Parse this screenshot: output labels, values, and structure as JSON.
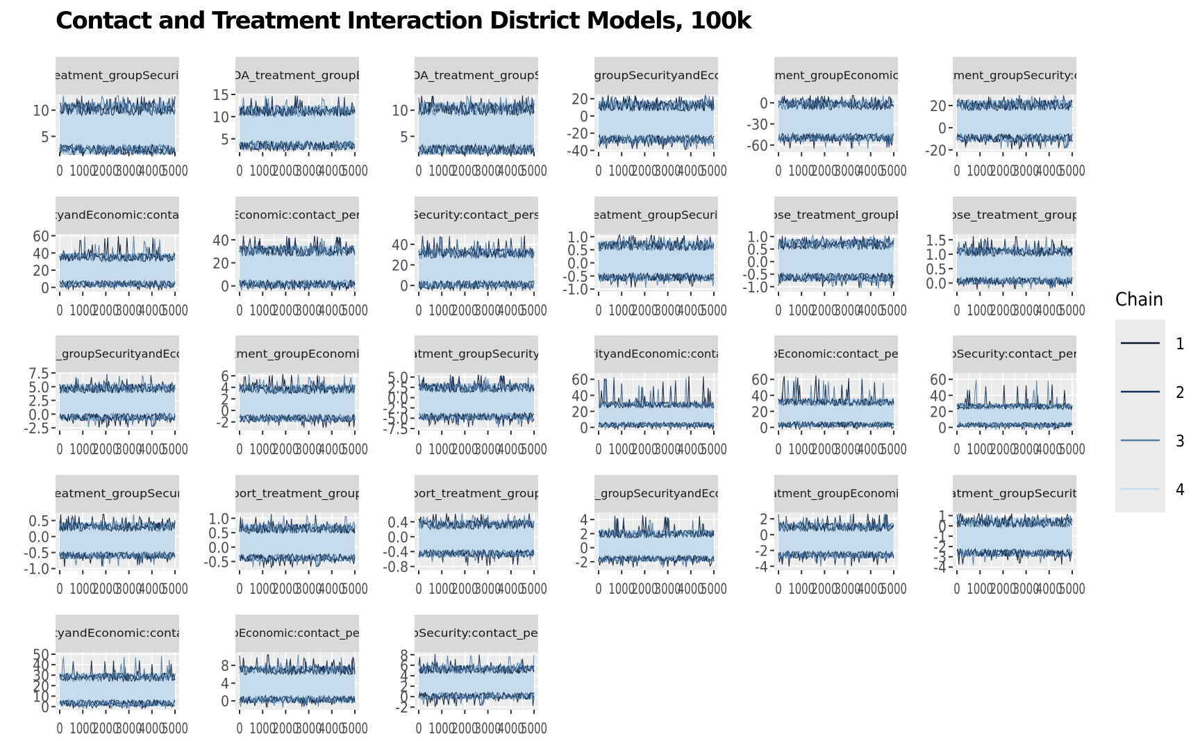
{
  "chart_data": {
    "type": "line",
    "title": "Contact and Treatment Interaction District Models, 100k",
    "xlabel": "",
    "ylabel": "",
    "x_ticks": [
      "0",
      "1000",
      "2000",
      "3000",
      "4000",
      "5000"
    ],
    "xlim": [
      0,
      5000
    ],
    "grid": true,
    "legend": {
      "title": "Chain",
      "placement": "right",
      "entries": [
        "1",
        "2",
        "3",
        "4"
      ],
      "colors": [
        "#08162e",
        "#0e2f5c",
        "#4f7da8",
        "#c6dbec"
      ]
    },
    "facets": [
      {
        "strip": "treatment_groupSecurity",
        "ylim": [
          2,
          13
        ],
        "yticks": [
          "5",
          "10"
        ],
        "band": [
          1.5,
          11.5
        ]
      },
      {
        "strip": "KDA_treatment_groupEc",
        "ylim": [
          2,
          15
        ],
        "yticks": [
          "5",
          "10",
          "15"
        ],
        "band": [
          2.5,
          12.5
        ]
      },
      {
        "strip": "KDA_treatment_groupSe",
        "ylim": [
          2,
          13
        ],
        "yticks": [
          "5",
          "10"
        ],
        "band": [
          1.5,
          11.5
        ]
      },
      {
        "strip": "t_groupSecurityandEcon",
        "ylim": [
          -42,
          25
        ],
        "yticks": [
          "20",
          "0",
          "-20",
          "-40"
        ],
        "band": [
          -32,
          18
        ]
      },
      {
        "strip": "atment_groupEconomic:c",
        "ylim": [
          -70,
          12
        ],
        "yticks": [
          "0",
          "-30",
          "-60"
        ],
        "band": [
          -55,
          5
        ]
      },
      {
        "strip": "atment_groupSecurity:co",
        "ylim": [
          -22,
          30
        ],
        "yticks": [
          "20",
          "0",
          "-20"
        ],
        "band": [
          -13,
          25
        ]
      },
      {
        "strip": "rityandEconomic:contact",
        "ylim": [
          -5,
          62
        ],
        "yticks": [
          "60",
          "40",
          "20",
          "0"
        ],
        "band": [
          0,
          40
        ]
      },
      {
        "strip": "pEconomic:contact_persl",
        "ylim": [
          -5,
          45
        ],
        "yticks": [
          "40",
          "20",
          "0"
        ],
        "band": [
          -2,
          35
        ]
      },
      {
        "strip": "pSecurity:contact_persD",
        "ylim": [
          -6,
          50
        ],
        "yticks": [
          "40",
          "20",
          "0"
        ],
        "band": [
          -3,
          36
        ]
      },
      {
        "strip": "treatment_groupSecurity",
        "ylim": [
          -1.1,
          1.1
        ],
        "yticks": [
          "1.0",
          "0.5",
          "0.0",
          "-0.5",
          "-1.0"
        ],
        "band": [
          -0.7,
          0.85
        ]
      },
      {
        "strip": "pose_treatment_groupEc",
        "ylim": [
          -1.2,
          1.1
        ],
        "yticks": [
          "1.0",
          "0.5",
          "0.0",
          "-0.5",
          "-1.0"
        ],
        "band": [
          -0.8,
          0.9
        ]
      },
      {
        "strip": "pose_treatment_groupS",
        "ylim": [
          -0.3,
          1.7
        ],
        "yticks": [
          "1.5",
          "1.0",
          "0.5",
          "0.0"
        ],
        "band": [
          -0.05,
          1.25
        ]
      },
      {
        "strip": "nt_groupSecurityandEcon",
        "ylim": [
          -3,
          7.5
        ],
        "yticks": [
          "7.5",
          "5.0",
          "2.5",
          "0.0",
          "-2.5"
        ],
        "band": [
          -1.2,
          5.5
        ]
      },
      {
        "strip": "atment_groupEconomic:",
        "ylim": [
          -3.5,
          6.5
        ],
        "yticks": [
          "6",
          "4",
          "2",
          "0",
          "-2"
        ],
        "band": [
          -2.0,
          4.5
        ]
      },
      {
        "strip": "eatment_groupSecurity:c",
        "ylim": [
          -8,
          6
        ],
        "yticks": [
          "5.0",
          "2.5",
          "0.0",
          "-2.5",
          "-5.0",
          "-7.5"
        ],
        "band": [
          -5.5,
          3.5
        ]
      },
      {
        "strip": "urityandEconomic:contac",
        "ylim": [
          -4,
          68
        ],
        "yticks": [
          "60",
          "40",
          "20",
          "0"
        ],
        "band": [
          0,
          32
        ]
      },
      {
        "strip": "upEconomic:contact_pers",
        "ylim": [
          -4,
          68
        ],
        "yticks": [
          "60",
          "40",
          "20",
          "0"
        ],
        "band": [
          0,
          36
        ]
      },
      {
        "strip": "upSecurity:contact_persl",
        "ylim": [
          -4,
          68
        ],
        "yticks": [
          "60",
          "40",
          "20",
          "0"
        ],
        "band": [
          0,
          30
        ]
      },
      {
        "strip": "treatment_groupSecurit",
        "ylim": [
          -1.05,
          0.75
        ],
        "yticks": [
          "0.5",
          "0.0",
          "-0.5",
          "-1.0"
        ],
        "band": [
          -0.7,
          0.45
        ]
      },
      {
        "strip": "pport_treatment_groupE",
        "ylim": [
          -0.8,
          1.2
        ],
        "yticks": [
          "1.0",
          "0.5",
          "0.0",
          "-0.5"
        ],
        "band": [
          -0.5,
          0.8
        ]
      },
      {
        "strip": "pport_treatment_groupS",
        "ylim": [
          -0.9,
          0.65
        ],
        "yticks": [
          "0.4",
          "0.0",
          "-0.4",
          "-0.8"
        ],
        "band": [
          -0.55,
          0.45
        ]
      },
      {
        "strip": "nt_groupSecurityandEcon",
        "ylim": [
          -3.2,
          5
        ],
        "yticks": [
          "4",
          "2",
          "0",
          "-2"
        ],
        "band": [
          -2.0,
          2.5
        ]
      },
      {
        "strip": "eatment_groupEconomic:",
        "ylim": [
          -4.5,
          2.8
        ],
        "yticks": [
          "2",
          "0",
          "-2",
          "-4"
        ],
        "band": [
          -3.0,
          1.5
        ]
      },
      {
        "strip": "eatment_groupSecurity:",
        "ylim": [
          -4.3,
          1.3
        ],
        "yticks": [
          "1",
          "0",
          "-1",
          "-2",
          "-3",
          "-4"
        ],
        "band": [
          -3.0,
          0.8
        ]
      },
      {
        "strip": "rityandEconomic:contac",
        "ylim": [
          -3,
          52
        ],
        "yticks": [
          "50",
          "40",
          "30",
          "20",
          "10",
          "0"
        ],
        "band": [
          0,
          32
        ]
      },
      {
        "strip": "upEconomic:contact_pers",
        "ylim": [
          -2,
          11
        ],
        "yticks": [
          "8",
          "4",
          "0"
        ],
        "band": [
          -0.5,
          8
        ]
      },
      {
        "strip": "upSecurity:contact_pers",
        "ylim": [
          -2.5,
          8.5
        ],
        "yticks": [
          "8",
          "6",
          "4",
          "2",
          "0",
          "-2"
        ],
        "band": [
          -0.5,
          6
        ]
      }
    ]
  }
}
